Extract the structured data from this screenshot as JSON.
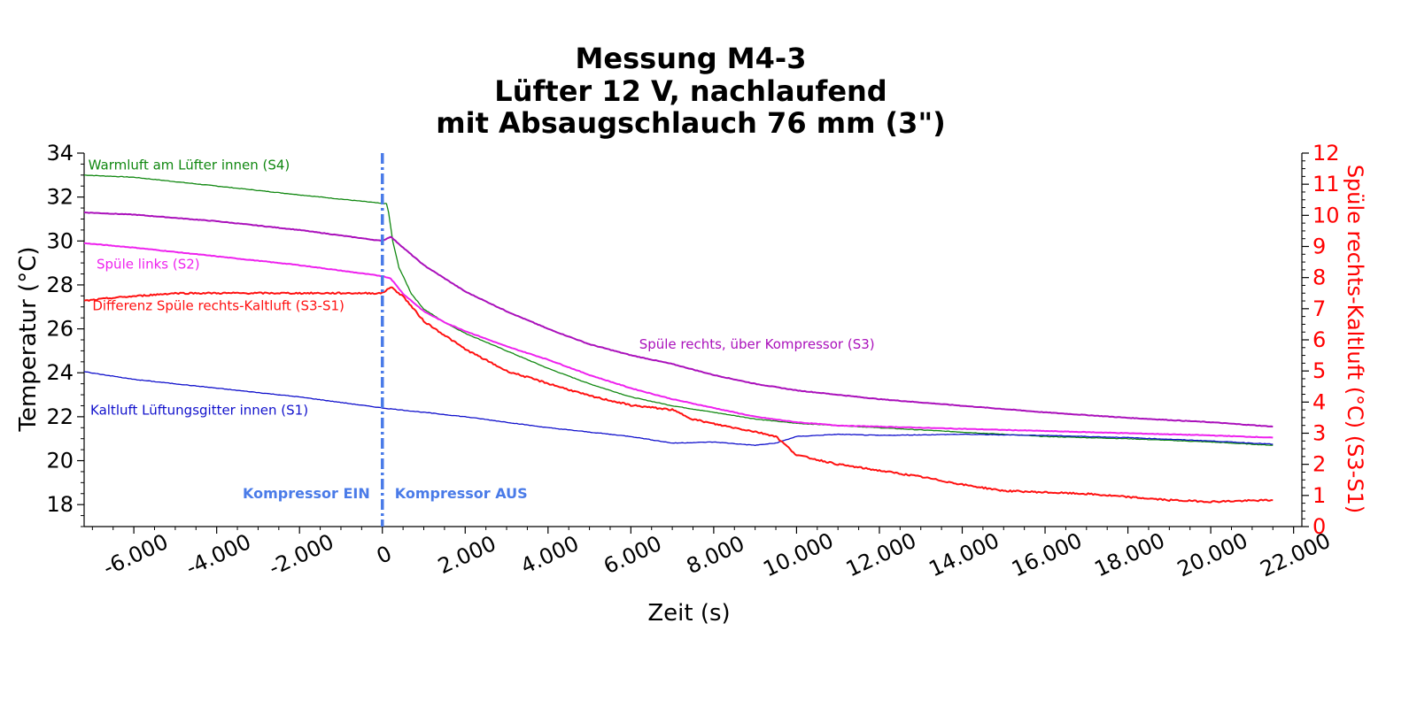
{
  "chart_data": {
    "type": "line",
    "title_lines": [
      "Messung M4-3",
      "Lüfter 12 V, nachlaufend",
      "mit Absaugschlauch 76 mm (3\")"
    ],
    "xlabel": "Zeit (s)",
    "ylabel": "Temperatur (°C)",
    "ylabel_right": "Spüle rechts-Kaltluft (°C) (S3-S1)",
    "xlim": [
      -7200,
      22200
    ],
    "ylim": [
      17,
      34
    ],
    "ylim_right": [
      0,
      12
    ],
    "x_ticks": [
      -6000,
      -4000,
      -2000,
      0,
      2000,
      4000,
      6000,
      8000,
      10000,
      12000,
      14000,
      16000,
      18000,
      20000,
      22000
    ],
    "x_tick_labels": [
      "-6.000",
      "-4.000",
      "-2.000",
      "0",
      "2.000",
      "4.000",
      "6.000",
      "8.000",
      "10.000",
      "12.000",
      "14.000",
      "16.000",
      "18.000",
      "20.000",
      "22.000"
    ],
    "y_ticks": [
      18,
      20,
      22,
      24,
      26,
      28,
      30,
      32,
      34
    ],
    "y_tick_labels": [
      "18",
      "20",
      "22",
      "24",
      "26",
      "28",
      "30",
      "32",
      "34"
    ],
    "y_right_ticks": [
      0,
      1,
      2,
      3,
      4,
      5,
      6,
      7,
      8,
      9,
      10,
      11,
      12
    ],
    "y_right_tick_labels": [
      "0",
      "1",
      "2",
      "3",
      "4",
      "5",
      "6",
      "7",
      "8",
      "9",
      "10",
      "11",
      "12"
    ],
    "grid": false,
    "vline": {
      "x": 0,
      "color": "#4a7be8"
    },
    "annotations": [
      {
        "text": "Kompressor EIN",
        "x": 0,
        "anchor": "end"
      },
      {
        "text": "Kompressor AUS",
        "x": 0,
        "anchor": "start"
      }
    ],
    "series": [
      {
        "name": "Warmluft am Lüfter innen (S4)",
        "color": "#118811",
        "axis": "left",
        "width": 1.3,
        "label_x": -7100,
        "label_y": 33.25,
        "points": [
          [
            -7200,
            33.0
          ],
          [
            -6000,
            32.9
          ],
          [
            -4000,
            32.5
          ],
          [
            -2000,
            32.1
          ],
          [
            -200,
            31.75
          ],
          [
            0,
            31.7
          ],
          [
            100,
            31.7
          ],
          [
            150,
            31.3
          ],
          [
            250,
            30.0
          ],
          [
            400,
            28.8
          ],
          [
            700,
            27.6
          ],
          [
            1000,
            26.9
          ],
          [
            1500,
            26.3
          ],
          [
            2000,
            25.8
          ],
          [
            3000,
            25.0
          ],
          [
            4000,
            24.2
          ],
          [
            5000,
            23.5
          ],
          [
            6000,
            22.9
          ],
          [
            7000,
            22.5
          ],
          [
            8000,
            22.2
          ],
          [
            9000,
            21.9
          ],
          [
            10000,
            21.7
          ],
          [
            11000,
            21.6
          ],
          [
            12000,
            21.5
          ],
          [
            14000,
            21.3
          ],
          [
            16000,
            21.1
          ],
          [
            18000,
            21.0
          ],
          [
            20000,
            20.85
          ],
          [
            21500,
            20.7
          ]
        ]
      },
      {
        "name": "Spüle rechts, über Kompressor (S3)",
        "color": "#aa11bb",
        "axis": "left",
        "width": 2.0,
        "label_x": 6200,
        "label_y": 25.1,
        "points": [
          [
            -7200,
            31.3
          ],
          [
            -6000,
            31.2
          ],
          [
            -4000,
            30.9
          ],
          [
            -2000,
            30.5
          ],
          [
            -200,
            30.05
          ],
          [
            0,
            30.0
          ],
          [
            200,
            30.2
          ],
          [
            500,
            29.7
          ],
          [
            1000,
            28.9
          ],
          [
            2000,
            27.7
          ],
          [
            3000,
            26.8
          ],
          [
            4000,
            26.0
          ],
          [
            5000,
            25.3
          ],
          [
            6000,
            24.8
          ],
          [
            7000,
            24.4
          ],
          [
            8000,
            23.9
          ],
          [
            9000,
            23.5
          ],
          [
            10000,
            23.2
          ],
          [
            11000,
            23.0
          ],
          [
            12000,
            22.8
          ],
          [
            14000,
            22.5
          ],
          [
            16000,
            22.2
          ],
          [
            18000,
            21.95
          ],
          [
            20000,
            21.75
          ],
          [
            21500,
            21.55
          ]
        ]
      },
      {
        "name": "Spüle links (S2)",
        "color": "#ee22ee",
        "axis": "left",
        "width": 2.0,
        "label_x": -6900,
        "label_y": 28.75,
        "points": [
          [
            -7200,
            29.9
          ],
          [
            -6000,
            29.7
          ],
          [
            -4000,
            29.3
          ],
          [
            -2000,
            28.9
          ],
          [
            -200,
            28.45
          ],
          [
            0,
            28.4
          ],
          [
            200,
            28.3
          ],
          [
            500,
            27.6
          ],
          [
            1000,
            26.8
          ],
          [
            1500,
            26.3
          ],
          [
            2000,
            25.9
          ],
          [
            3000,
            25.2
          ],
          [
            4000,
            24.6
          ],
          [
            5000,
            23.9
          ],
          [
            6000,
            23.3
          ],
          [
            7000,
            22.8
          ],
          [
            8000,
            22.4
          ],
          [
            9000,
            22.0
          ],
          [
            10000,
            21.75
          ],
          [
            11000,
            21.6
          ],
          [
            12000,
            21.55
          ],
          [
            14000,
            21.45
          ],
          [
            16000,
            21.35
          ],
          [
            18000,
            21.25
          ],
          [
            20000,
            21.15
          ],
          [
            21500,
            21.05
          ]
        ]
      },
      {
        "name": "Kaltluft Lüftungsgitter innen (S1)",
        "color": "#1111cc",
        "axis": "left",
        "width": 1.3,
        "label_x": -7050,
        "label_y": 22.1,
        "points": [
          [
            -7200,
            24.05
          ],
          [
            -6000,
            23.7
          ],
          [
            -4000,
            23.3
          ],
          [
            -2000,
            22.9
          ],
          [
            0,
            22.4
          ],
          [
            2000,
            22.0
          ],
          [
            4000,
            21.5
          ],
          [
            6000,
            21.1
          ],
          [
            7000,
            20.8
          ],
          [
            8000,
            20.85
          ],
          [
            9000,
            20.7
          ],
          [
            9500,
            20.8
          ],
          [
            10000,
            21.1
          ],
          [
            11000,
            21.2
          ],
          [
            12000,
            21.15
          ],
          [
            14000,
            21.2
          ],
          [
            16000,
            21.15
          ],
          [
            18000,
            21.05
          ],
          [
            20000,
            20.9
          ],
          [
            21500,
            20.75
          ]
        ]
      },
      {
        "name": "Differenz Spüle rechts-Kaltluft (S3-S1)",
        "color": "#ff1111",
        "axis": "right",
        "width": 2.0,
        "label_x": -7000,
        "label_y": 6.95,
        "points": [
          [
            -7200,
            7.25
          ],
          [
            -6500,
            7.35
          ],
          [
            -5000,
            7.5
          ],
          [
            -4000,
            7.5
          ],
          [
            -2000,
            7.5
          ],
          [
            -200,
            7.5
          ],
          [
            0,
            7.5
          ],
          [
            200,
            7.7
          ],
          [
            500,
            7.4
          ],
          [
            1000,
            6.6
          ],
          [
            2000,
            5.7
          ],
          [
            3000,
            5.0
          ],
          [
            4000,
            4.6
          ],
          [
            5000,
            4.2
          ],
          [
            6000,
            3.9
          ],
          [
            7000,
            3.75
          ],
          [
            7500,
            3.45
          ],
          [
            8000,
            3.3
          ],
          [
            9000,
            3.05
          ],
          [
            9500,
            2.9
          ],
          [
            10000,
            2.3
          ],
          [
            11000,
            2.0
          ],
          [
            12000,
            1.8
          ],
          [
            13000,
            1.6
          ],
          [
            14000,
            1.35
          ],
          [
            15000,
            1.15
          ],
          [
            16000,
            1.1
          ],
          [
            17000,
            1.05
          ],
          [
            18000,
            0.95
          ],
          [
            19000,
            0.85
          ],
          [
            20000,
            0.8
          ],
          [
            21500,
            0.85
          ]
        ]
      }
    ]
  }
}
